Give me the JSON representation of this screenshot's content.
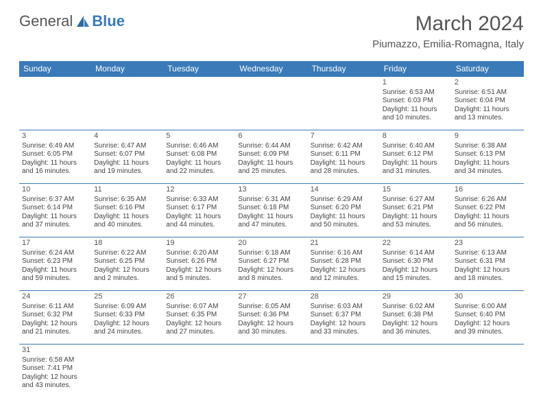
{
  "brand": {
    "part1": "General",
    "part2": "Blue"
  },
  "title": "March 2024",
  "location": "Piumazzo, Emilia-Romagna, Italy",
  "colors": {
    "header_bg": "#3a7ab8",
    "border": "#3a7ab8",
    "text": "#444444",
    "bg": "#ffffff"
  },
  "weekdays": [
    "Sunday",
    "Monday",
    "Tuesday",
    "Wednesday",
    "Thursday",
    "Friday",
    "Saturday"
  ],
  "weeks": [
    [
      null,
      null,
      null,
      null,
      null,
      {
        "n": "1",
        "sr": "Sunrise: 6:53 AM",
        "ss": "Sunset: 6:03 PM",
        "d1": "Daylight: 11 hours",
        "d2": "and 10 minutes."
      },
      {
        "n": "2",
        "sr": "Sunrise: 6:51 AM",
        "ss": "Sunset: 6:04 PM",
        "d1": "Daylight: 11 hours",
        "d2": "and 13 minutes."
      }
    ],
    [
      {
        "n": "3",
        "sr": "Sunrise: 6:49 AM",
        "ss": "Sunset: 6:05 PM",
        "d1": "Daylight: 11 hours",
        "d2": "and 16 minutes."
      },
      {
        "n": "4",
        "sr": "Sunrise: 6:47 AM",
        "ss": "Sunset: 6:07 PM",
        "d1": "Daylight: 11 hours",
        "d2": "and 19 minutes."
      },
      {
        "n": "5",
        "sr": "Sunrise: 6:46 AM",
        "ss": "Sunset: 6:08 PM",
        "d1": "Daylight: 11 hours",
        "d2": "and 22 minutes."
      },
      {
        "n": "6",
        "sr": "Sunrise: 6:44 AM",
        "ss": "Sunset: 6:09 PM",
        "d1": "Daylight: 11 hours",
        "d2": "and 25 minutes."
      },
      {
        "n": "7",
        "sr": "Sunrise: 6:42 AM",
        "ss": "Sunset: 6:11 PM",
        "d1": "Daylight: 11 hours",
        "d2": "and 28 minutes."
      },
      {
        "n": "8",
        "sr": "Sunrise: 6:40 AM",
        "ss": "Sunset: 6:12 PM",
        "d1": "Daylight: 11 hours",
        "d2": "and 31 minutes."
      },
      {
        "n": "9",
        "sr": "Sunrise: 6:38 AM",
        "ss": "Sunset: 6:13 PM",
        "d1": "Daylight: 11 hours",
        "d2": "and 34 minutes."
      }
    ],
    [
      {
        "n": "10",
        "sr": "Sunrise: 6:37 AM",
        "ss": "Sunset: 6:14 PM",
        "d1": "Daylight: 11 hours",
        "d2": "and 37 minutes."
      },
      {
        "n": "11",
        "sr": "Sunrise: 6:35 AM",
        "ss": "Sunset: 6:16 PM",
        "d1": "Daylight: 11 hours",
        "d2": "and 40 minutes."
      },
      {
        "n": "12",
        "sr": "Sunrise: 6:33 AM",
        "ss": "Sunset: 6:17 PM",
        "d1": "Daylight: 11 hours",
        "d2": "and 44 minutes."
      },
      {
        "n": "13",
        "sr": "Sunrise: 6:31 AM",
        "ss": "Sunset: 6:18 PM",
        "d1": "Daylight: 11 hours",
        "d2": "and 47 minutes."
      },
      {
        "n": "14",
        "sr": "Sunrise: 6:29 AM",
        "ss": "Sunset: 6:20 PM",
        "d1": "Daylight: 11 hours",
        "d2": "and 50 minutes."
      },
      {
        "n": "15",
        "sr": "Sunrise: 6:27 AM",
        "ss": "Sunset: 6:21 PM",
        "d1": "Daylight: 11 hours",
        "d2": "and 53 minutes."
      },
      {
        "n": "16",
        "sr": "Sunrise: 6:26 AM",
        "ss": "Sunset: 6:22 PM",
        "d1": "Daylight: 11 hours",
        "d2": "and 56 minutes."
      }
    ],
    [
      {
        "n": "17",
        "sr": "Sunrise: 6:24 AM",
        "ss": "Sunset: 6:23 PM",
        "d1": "Daylight: 11 hours",
        "d2": "and 59 minutes."
      },
      {
        "n": "18",
        "sr": "Sunrise: 6:22 AM",
        "ss": "Sunset: 6:25 PM",
        "d1": "Daylight: 12 hours",
        "d2": "and 2 minutes."
      },
      {
        "n": "19",
        "sr": "Sunrise: 6:20 AM",
        "ss": "Sunset: 6:26 PM",
        "d1": "Daylight: 12 hours",
        "d2": "and 5 minutes."
      },
      {
        "n": "20",
        "sr": "Sunrise: 6:18 AM",
        "ss": "Sunset: 6:27 PM",
        "d1": "Daylight: 12 hours",
        "d2": "and 8 minutes."
      },
      {
        "n": "21",
        "sr": "Sunrise: 6:16 AM",
        "ss": "Sunset: 6:28 PM",
        "d1": "Daylight: 12 hours",
        "d2": "and 12 minutes."
      },
      {
        "n": "22",
        "sr": "Sunrise: 6:14 AM",
        "ss": "Sunset: 6:30 PM",
        "d1": "Daylight: 12 hours",
        "d2": "and 15 minutes."
      },
      {
        "n": "23",
        "sr": "Sunrise: 6:13 AM",
        "ss": "Sunset: 6:31 PM",
        "d1": "Daylight: 12 hours",
        "d2": "and 18 minutes."
      }
    ],
    [
      {
        "n": "24",
        "sr": "Sunrise: 6:11 AM",
        "ss": "Sunset: 6:32 PM",
        "d1": "Daylight: 12 hours",
        "d2": "and 21 minutes."
      },
      {
        "n": "25",
        "sr": "Sunrise: 6:09 AM",
        "ss": "Sunset: 6:33 PM",
        "d1": "Daylight: 12 hours",
        "d2": "and 24 minutes."
      },
      {
        "n": "26",
        "sr": "Sunrise: 6:07 AM",
        "ss": "Sunset: 6:35 PM",
        "d1": "Daylight: 12 hours",
        "d2": "and 27 minutes."
      },
      {
        "n": "27",
        "sr": "Sunrise: 6:05 AM",
        "ss": "Sunset: 6:36 PM",
        "d1": "Daylight: 12 hours",
        "d2": "and 30 minutes."
      },
      {
        "n": "28",
        "sr": "Sunrise: 6:03 AM",
        "ss": "Sunset: 6:37 PM",
        "d1": "Daylight: 12 hours",
        "d2": "and 33 minutes."
      },
      {
        "n": "29",
        "sr": "Sunrise: 6:02 AM",
        "ss": "Sunset: 6:38 PM",
        "d1": "Daylight: 12 hours",
        "d2": "and 36 minutes."
      },
      {
        "n": "30",
        "sr": "Sunrise: 6:00 AM",
        "ss": "Sunset: 6:40 PM",
        "d1": "Daylight: 12 hours",
        "d2": "and 39 minutes."
      }
    ],
    [
      {
        "n": "31",
        "sr": "Sunrise: 6:58 AM",
        "ss": "Sunset: 7:41 PM",
        "d1": "Daylight: 12 hours",
        "d2": "and 43 minutes."
      },
      null,
      null,
      null,
      null,
      null,
      null
    ]
  ]
}
